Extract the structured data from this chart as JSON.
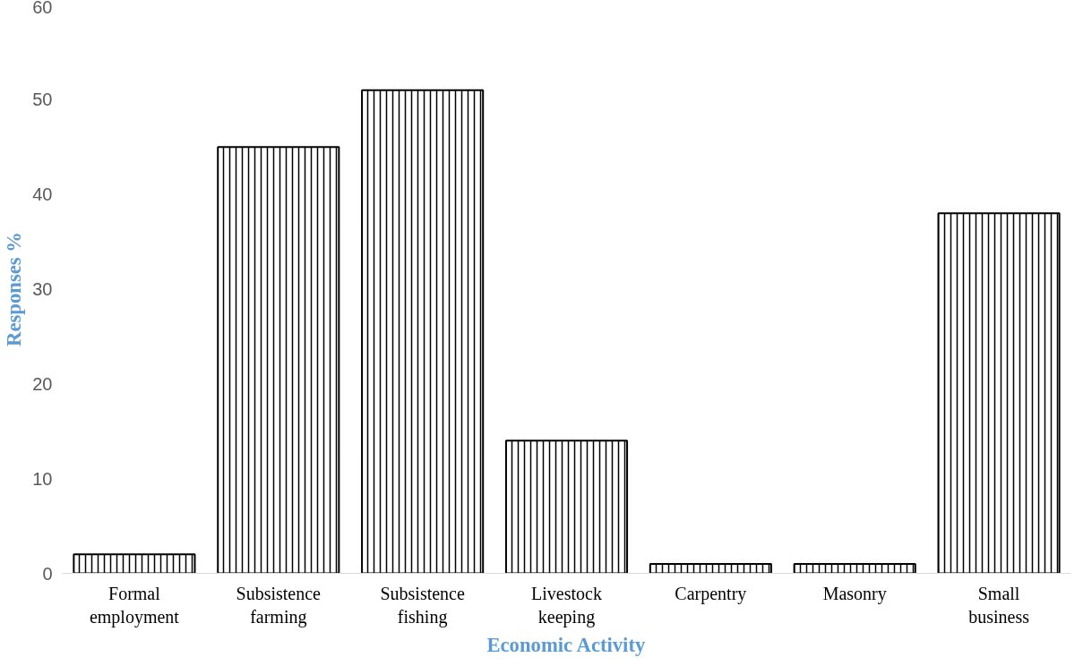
{
  "chart_data": {
    "type": "bar",
    "xlabel": "Economic Activity",
    "ylabel": "Responses %",
    "categories": [
      "Formal employment",
      "Subsistence farming",
      "Subsistence fishing",
      "Livestock keeping",
      "Carpentry",
      "Masonry",
      "Small business"
    ],
    "values": [
      2,
      45,
      51,
      14,
      1,
      1,
      38
    ],
    "color": "#000000",
    "ylim": [
      0,
      60
    ],
    "yticks": [
      0,
      10,
      20,
      30,
      40,
      50,
      60
    ],
    "grid": false
  }
}
